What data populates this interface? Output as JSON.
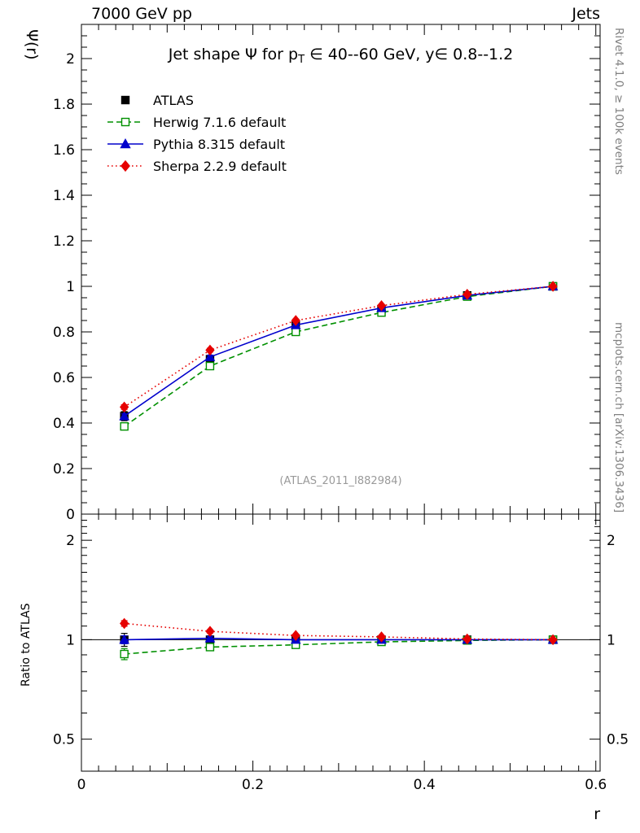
{
  "header": {
    "left_label": "7000 GeV pp",
    "right_label": "Jets"
  },
  "plot_title": {
    "pre": "Jet shape Ψ for p",
    "sub": "T",
    "post": " ∈ 40--60 GeV, y∈ 0.8--1.2"
  },
  "watermark": "(ATLAS_2011_I882984)",
  "side_notes": {
    "top_right": "Rivet 4.1.0, ≥ 100k events",
    "bottom_right": "mcplots.cern.ch [arXiv:1306.3436]"
  },
  "axes": {
    "y_label": "Ψ(r)",
    "ratio_y_label": "Ratio to ATLAS",
    "x_label": "r"
  },
  "chart_data": {
    "type": "line",
    "title": "Jet shape Ψ for pT ∈ 40--60 GeV, y∈ 0.8--1.2",
    "xlabel": "r",
    "ylabel": "Ψ(r)",
    "ratio_ylabel": "Ratio to ATLAS",
    "x": [
      0.05,
      0.15,
      0.25,
      0.35,
      0.45,
      0.55
    ],
    "xlim": [
      0,
      0.605
    ],
    "ylim": [
      0,
      2.15
    ],
    "ratio_ylim": [
      0.4,
      2.4
    ],
    "ratio_scale": "log",
    "grid": false,
    "legend_position": "top-left",
    "xticks": {
      "values": [
        0,
        0.2,
        0.4,
        0.6
      ],
      "labels": [
        "0",
        "0.2",
        "0.4",
        "0.6"
      ]
    },
    "yticks": {
      "values": [
        0,
        0.2,
        0.4,
        0.6,
        0.8,
        1,
        1.2,
        1.4,
        1.6,
        1.8,
        2
      ],
      "labels": [
        "0",
        "0.2",
        "0.4",
        "0.6",
        "0.8",
        "1",
        "1.2",
        "1.4",
        "1.6",
        "1.8",
        "2"
      ]
    },
    "ratio_yticks": {
      "values": [
        0.5,
        1,
        2
      ],
      "labels": [
        "0.5",
        "1",
        "2"
      ]
    },
    "series": [
      {
        "name": "ATLAS",
        "color": "#000000",
        "marker": "square",
        "fill": true,
        "line": "none",
        "values": [
          0.43,
          0.68,
          0.83,
          0.9,
          0.96,
          1.0
        ],
        "errors": [
          0.02,
          0.018,
          0.014,
          0.01,
          0.007,
          0.004
        ],
        "ratio": [
          1.0,
          1.0,
          1.0,
          1.0,
          1.0,
          1.0
        ],
        "ratio_errors": [
          0.045,
          0.027,
          0.017,
          0.011,
          0.007,
          0.004
        ]
      },
      {
        "name": "Herwig 7.1.6 default",
        "color": "#009000",
        "marker": "square",
        "fill": false,
        "line": "dashed",
        "values": [
          0.385,
          0.65,
          0.8,
          0.885,
          0.955,
          1.0
        ],
        "errors": [
          0.012,
          0.01,
          0.008,
          0.006,
          0.004,
          0.002
        ],
        "ratio": [
          0.905,
          0.95,
          0.965,
          0.985,
          0.995,
          1.0
        ],
        "ratio_errors": [
          0.035,
          0.018,
          0.011,
          0.008,
          0.005,
          0.003
        ]
      },
      {
        "name": "Pythia 8.315 default",
        "color": "#0000cc",
        "marker": "triangle",
        "fill": true,
        "line": "solid",
        "values": [
          0.43,
          0.69,
          0.83,
          0.905,
          0.96,
          1.0
        ],
        "errors": [
          0.01,
          0.008,
          0.007,
          0.005,
          0.004,
          0.002
        ],
        "ratio": [
          1.0,
          1.01,
          1.0,
          1.0,
          1.0,
          1.0
        ],
        "ratio_errors": [
          0.028,
          0.014,
          0.009,
          0.007,
          0.004,
          0.003
        ]
      },
      {
        "name": "Sherpa 2.2.9 default",
        "color": "#e60000",
        "marker": "diamond",
        "fill": true,
        "line": "dotted",
        "values": [
          0.47,
          0.72,
          0.85,
          0.915,
          0.965,
          1.0
        ],
        "errors": [
          0.01,
          0.008,
          0.006,
          0.005,
          0.004,
          0.002
        ],
        "ratio": [
          1.12,
          1.06,
          1.03,
          1.02,
          1.005,
          1.0
        ],
        "ratio_errors": [
          0.022,
          0.012,
          0.008,
          0.006,
          0.004,
          0.003
        ]
      }
    ]
  }
}
